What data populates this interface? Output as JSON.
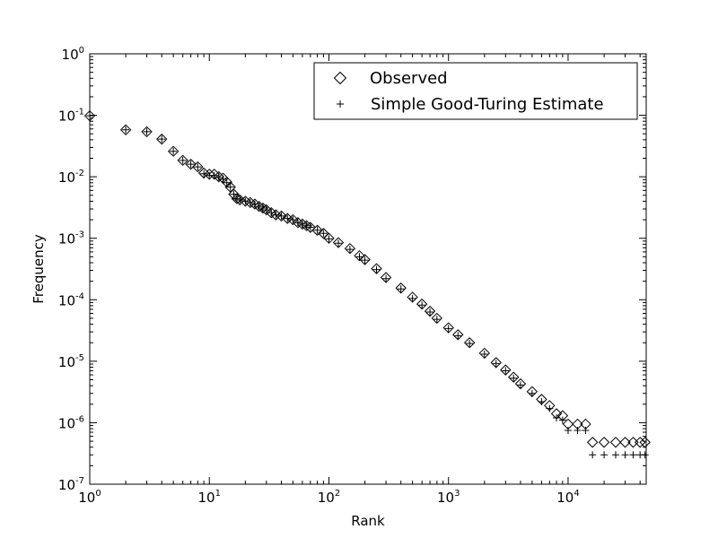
{
  "chart_data": {
    "type": "scatter",
    "title": "",
    "xlabel": "Rank",
    "ylabel": "Frequency",
    "xscale": "log",
    "yscale": "log",
    "xlim": [
      1,
      45000
    ],
    "ylim": [
      1e-07,
      1
    ],
    "x_ticks": [
      {
        "value": 1,
        "base": "10",
        "exp": "0"
      },
      {
        "value": 10,
        "base": "10",
        "exp": "1"
      },
      {
        "value": 100,
        "base": "10",
        "exp": "2"
      },
      {
        "value": 1000,
        "base": "10",
        "exp": "3"
      },
      {
        "value": 10000,
        "base": "10",
        "exp": "4"
      }
    ],
    "y_ticks": [
      {
        "value": 1,
        "base": "10",
        "exp": "0"
      },
      {
        "value": 0.1,
        "base": "10",
        "exp": "-1"
      },
      {
        "value": 0.01,
        "base": "10",
        "exp": "-2"
      },
      {
        "value": 0.001,
        "base": "10",
        "exp": "-3"
      },
      {
        "value": 0.0001,
        "base": "10",
        "exp": "-4"
      },
      {
        "value": 1e-05,
        "base": "10",
        "exp": "-5"
      },
      {
        "value": 1e-06,
        "base": "10",
        "exp": "-6"
      },
      {
        "value": 1e-07,
        "base": "10",
        "exp": "-7"
      }
    ],
    "grid": false,
    "legend_position": "top-right",
    "series": [
      {
        "name": "Observed",
        "marker": "diamond",
        "points": [
          [
            1,
            0.098
          ],
          [
            2,
            0.058
          ],
          [
            3,
            0.054
          ],
          [
            4,
            0.041
          ],
          [
            5,
            0.026
          ],
          [
            6,
            0.0185
          ],
          [
            7,
            0.016
          ],
          [
            8,
            0.0145
          ],
          [
            9,
            0.0115
          ],
          [
            10,
            0.011
          ],
          [
            11,
            0.011
          ],
          [
            12,
            0.01
          ],
          [
            13,
            0.0095
          ],
          [
            14,
            0.0082
          ],
          [
            15,
            0.0068
          ],
          [
            16,
            0.0052
          ],
          [
            17,
            0.0044
          ],
          [
            18,
            0.0042
          ],
          [
            20,
            0.004
          ],
          [
            22,
            0.0038
          ],
          [
            24,
            0.0036
          ],
          [
            26,
            0.0033
          ],
          [
            28,
            0.0031
          ],
          [
            30,
            0.0029
          ],
          [
            33,
            0.0026
          ],
          [
            36,
            0.0024
          ],
          [
            40,
            0.0023
          ],
          [
            45,
            0.0021
          ],
          [
            50,
            0.002
          ],
          [
            55,
            0.0018
          ],
          [
            60,
            0.0017
          ],
          [
            65,
            0.0016
          ],
          [
            70,
            0.0015
          ],
          [
            80,
            0.00135
          ],
          [
            90,
            0.0012
          ],
          [
            100,
            0.001
          ],
          [
            120,
            0.00085
          ],
          [
            150,
            0.00068
          ],
          [
            180,
            0.00052
          ],
          [
            200,
            0.00045
          ],
          [
            250,
            0.00032
          ],
          [
            300,
            0.00023
          ],
          [
            400,
            0.000155
          ],
          [
            500,
            0.00011
          ],
          [
            600,
            8.5e-05
          ],
          [
            700,
            6.5e-05
          ],
          [
            800,
            5e-05
          ],
          [
            1000,
            3.5e-05
          ],
          [
            1200,
            2.7e-05
          ],
          [
            1500,
            2e-05
          ],
          [
            2000,
            1.35e-05
          ],
          [
            2500,
            9.5e-06
          ],
          [
            3000,
            7.2e-06
          ],
          [
            3500,
            5.5e-06
          ],
          [
            4000,
            4.3e-06
          ],
          [
            5000,
            3.2e-06
          ],
          [
            6000,
            2.4e-06
          ],
          [
            7000,
            1.9e-06
          ],
          [
            8000,
            1.4e-06
          ],
          [
            9000,
            1.3e-06
          ],
          [
            10000,
            9.5e-07
          ],
          [
            12000,
            9.5e-07
          ],
          [
            14000,
            9.5e-07
          ],
          [
            16000,
            4.8e-07
          ],
          [
            20000,
            4.8e-07
          ],
          [
            25000,
            4.8e-07
          ],
          [
            30000,
            4.8e-07
          ],
          [
            35000,
            4.8e-07
          ],
          [
            40000,
            4.8e-07
          ],
          [
            44000,
            4.8e-07
          ]
        ]
      },
      {
        "name": "Simple Good-Turing Estimate",
        "marker": "plus",
        "points": [
          [
            1,
            0.098
          ],
          [
            2,
            0.058
          ],
          [
            3,
            0.054
          ],
          [
            4,
            0.041
          ],
          [
            5,
            0.026
          ],
          [
            6,
            0.0185
          ],
          [
            7,
            0.016
          ],
          [
            8,
            0.0145
          ],
          [
            9,
            0.0112
          ],
          [
            10,
            0.0105
          ],
          [
            11,
            0.0105
          ],
          [
            12,
            0.0098
          ],
          [
            13,
            0.0092
          ],
          [
            14,
            0.008
          ],
          [
            15,
            0.0068
          ],
          [
            16,
            0.0052
          ],
          [
            17,
            0.0044
          ],
          [
            18,
            0.0042
          ],
          [
            20,
            0.004
          ],
          [
            22,
            0.0038
          ],
          [
            24,
            0.0036
          ],
          [
            26,
            0.0033
          ],
          [
            28,
            0.0031
          ],
          [
            30,
            0.0029
          ],
          [
            33,
            0.0026
          ],
          [
            36,
            0.0024
          ],
          [
            40,
            0.0023
          ],
          [
            45,
            0.0021
          ],
          [
            50,
            0.002
          ],
          [
            55,
            0.0018
          ],
          [
            60,
            0.0017
          ],
          [
            65,
            0.0016
          ],
          [
            70,
            0.0015
          ],
          [
            80,
            0.00135
          ],
          [
            90,
            0.0012
          ],
          [
            100,
            0.00098
          ],
          [
            120,
            0.00083
          ],
          [
            150,
            0.00066
          ],
          [
            180,
            0.0005
          ],
          [
            200,
            0.00044
          ],
          [
            250,
            0.00031
          ],
          [
            300,
            0.00022
          ],
          [
            400,
            0.00015
          ],
          [
            500,
            0.000105
          ],
          [
            600,
            8.2e-05
          ],
          [
            700,
            6.3e-05
          ],
          [
            800,
            4.8e-05
          ],
          [
            1000,
            3.4e-05
          ],
          [
            1200,
            2.6e-05
          ],
          [
            1500,
            1.95e-05
          ],
          [
            2000,
            1.3e-05
          ],
          [
            2500,
            9.2e-06
          ],
          [
            3000,
            7e-06
          ],
          [
            3500,
            5.3e-06
          ],
          [
            4000,
            4.1e-06
          ],
          [
            5000,
            3e-06
          ],
          [
            6000,
            2.2e-06
          ],
          [
            7000,
            1.7e-06
          ],
          [
            8000,
            1.2e-06
          ],
          [
            9000,
            1.1e-06
          ],
          [
            10000,
            7.5e-07
          ],
          [
            12000,
            7.5e-07
          ],
          [
            14000,
            7.5e-07
          ],
          [
            16000,
            3e-07
          ],
          [
            20000,
            3e-07
          ],
          [
            25000,
            3e-07
          ],
          [
            30000,
            3e-07
          ],
          [
            35000,
            3e-07
          ],
          [
            40000,
            3e-07
          ],
          [
            44000,
            3e-07
          ]
        ]
      }
    ]
  }
}
